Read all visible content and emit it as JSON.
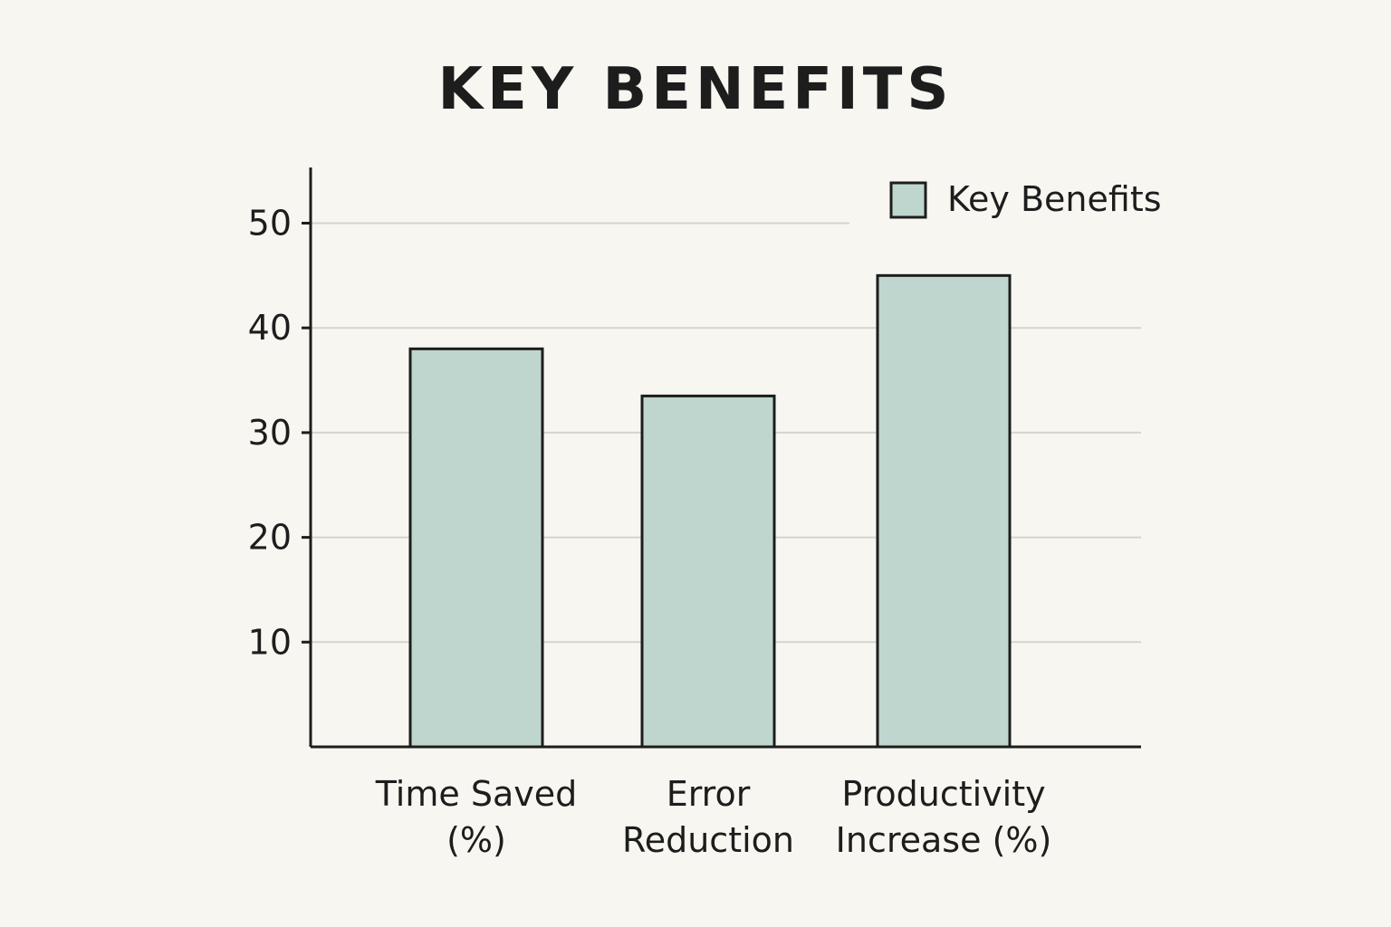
{
  "chart_data": {
    "type": "bar",
    "title": "KEY BENEFITS",
    "categories": [
      [
        "Time Saved",
        "(%)"
      ],
      [
        "Error",
        "Reduction"
      ],
      [
        "Productivity",
        "Increase (%)"
      ]
    ],
    "series": [
      {
        "name": "Key Benefits",
        "values": [
          38,
          33.5,
          45
        ]
      }
    ],
    "yticks": [
      10,
      20,
      30,
      40,
      50
    ],
    "ylim": [
      0,
      55
    ],
    "grid": true,
    "legend": "top-right",
    "colors": {
      "bar_fill": "#bfd6cf",
      "bar_stroke": "#1d1d1d",
      "grid": "#d6d4cf",
      "axis": "#1d1d1d",
      "background": "#f8f6f1"
    }
  }
}
